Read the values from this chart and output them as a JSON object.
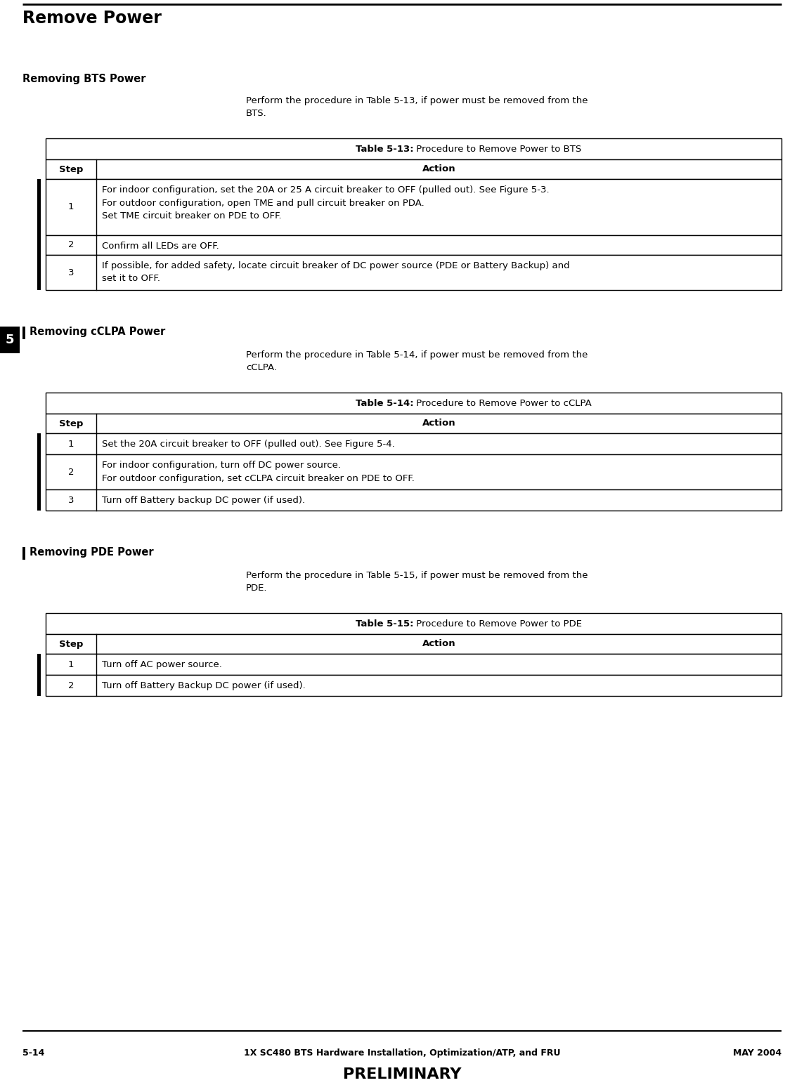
{
  "page_title": "Remove Power",
  "section1_title": "Removing BTS Power",
  "section1_intro": "Perform the procedure in Table 5-13, if power must be removed from the\nBTS.",
  "table1_title_bold": "Table 5-13:",
  "table1_title_rest": " Procedure to Remove Power to BTS",
  "table1_headers": [
    "Step",
    "Action"
  ],
  "table1_rows": [
    [
      "1",
      "For indoor configuration, set the 20A or 25 A circuit breaker to OFF (pulled out). See Figure 5-3.\nFor outdoor configuration, open TME and pull circuit breaker on PDA.\nSet TME circuit breaker on PDE to OFF."
    ],
    [
      "2",
      "Confirm all LEDs are OFF."
    ],
    [
      "3",
      "If possible, for added safety, locate circuit breaker of DC power source (PDE or Battery Backup) and\nset it to OFF."
    ]
  ],
  "section2_title": "Removing cCLPA Power",
  "section2_intro": "Perform the procedure in Table 5-14, if power must be removed from the\ncCLPA.",
  "table2_title_bold": "Table 5-14:",
  "table2_title_rest": " Procedure to Remove Power to cCLPA",
  "table2_headers": [
    "Step",
    "Action"
  ],
  "table2_rows": [
    [
      "1",
      "Set the 20A circuit breaker to OFF (pulled out). See Figure 5-4."
    ],
    [
      "2",
      "For indoor configuration, turn off DC power source.\nFor outdoor configuration, set cCLPA circuit breaker on PDE to OFF."
    ],
    [
      "3",
      "Turn off Battery backup DC power (if used)."
    ]
  ],
  "section3_title": "Removing PDE Power",
  "section3_intro": "Perform the procedure in Table 5-15, if power must be removed from the\nPDE.",
  "table3_title_bold": "Table 5-15:",
  "table3_title_rest": " Procedure to Remove Power to PDE",
  "table3_headers": [
    "Step",
    "Action"
  ],
  "table3_rows": [
    [
      "1",
      "Turn off AC power source."
    ],
    [
      "2",
      "Turn off Battery Backup DC power (if used)."
    ]
  ],
  "footer_left": "5-14",
  "footer_center": "1X SC480 BTS Hardware Installation, Optimization/ATP, and FRU",
  "footer_right": "MAY 2004",
  "footer_prelim": "PRELIMINARY",
  "chapter_num": "5",
  "bg_color": "#ffffff",
  "text_color": "#000000"
}
